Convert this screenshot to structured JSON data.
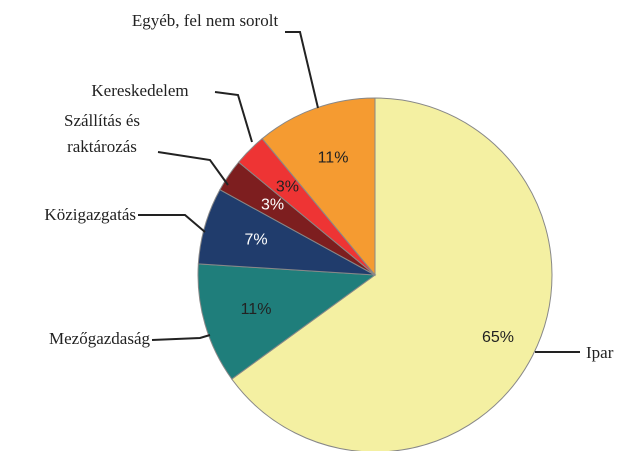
{
  "chart_data": {
    "type": "pie",
    "categories": [
      "Ipar",
      "Mezőgazdaság",
      "Közigazgatás",
      "Szállítás és raktározás",
      "Kereskedelem",
      "Egyéb, fel nem sorolt"
    ],
    "values": [
      65,
      11,
      7,
      3,
      3,
      11
    ],
    "value_labels": [
      "65%",
      "11%",
      "7%",
      "3%",
      "3%",
      "11%"
    ],
    "colors": [
      "#f4f0a2",
      "#1f7e7b",
      "#203c6c",
      "#7d1e1f",
      "#ee3434",
      "#f59b31"
    ]
  }
}
